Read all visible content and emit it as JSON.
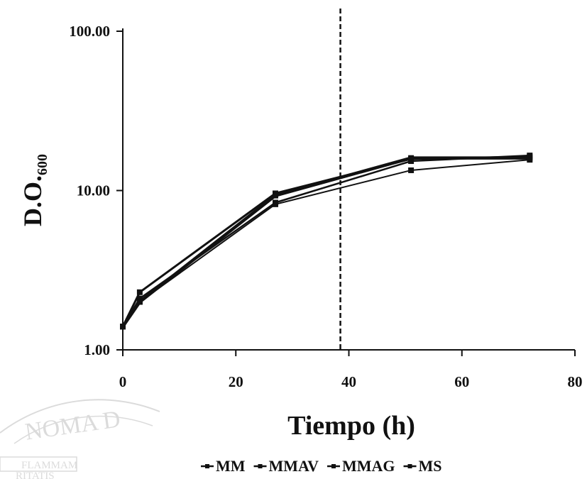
{
  "chart_data": {
    "type": "line",
    "title": "",
    "xlabel": "Tiempo (h)",
    "ylabel_main": "D.O.",
    "ylabel_sub": "600",
    "xlim": [
      0,
      80
    ],
    "ylim": [
      1,
      100
    ],
    "yscale": "log",
    "x_ticks": [
      0,
      20,
      40,
      60,
      80
    ],
    "x_tick_labels": [
      "0",
      "20",
      "40",
      "60",
      "80"
    ],
    "y_ticks": [
      1,
      10,
      100
    ],
    "y_tick_labels": [
      "1.00",
      "10.00",
      "100.00"
    ],
    "grid": false,
    "legend_position": "bottom",
    "vertical_reference_line": {
      "x": 38.5,
      "style": "dashed"
    },
    "series": [
      {
        "name": "MM",
        "x": [
          0,
          3,
          27,
          51,
          72
        ],
        "y": [
          1.4,
          2.3,
          9.6,
          15.8,
          16.3
        ]
      },
      {
        "name": "MMAV",
        "x": [
          0,
          3,
          27,
          51,
          72
        ],
        "y": [
          1.4,
          2.1,
          8.4,
          15.3,
          16.6
        ]
      },
      {
        "name": "MMAG",
        "x": [
          0,
          3,
          27,
          51,
          72
        ],
        "y": [
          1.4,
          2.0,
          8.2,
          13.4,
          15.6
        ]
      },
      {
        "name": "MS",
        "x": [
          0,
          3,
          27,
          51,
          72
        ],
        "y": [
          1.4,
          2.0,
          9.3,
          16.0,
          16.0
        ]
      }
    ]
  },
  "watermark": {
    "arc_text": "NOMA D",
    "line1": "FLAMMAM",
    "line2": "RITATIS"
  }
}
